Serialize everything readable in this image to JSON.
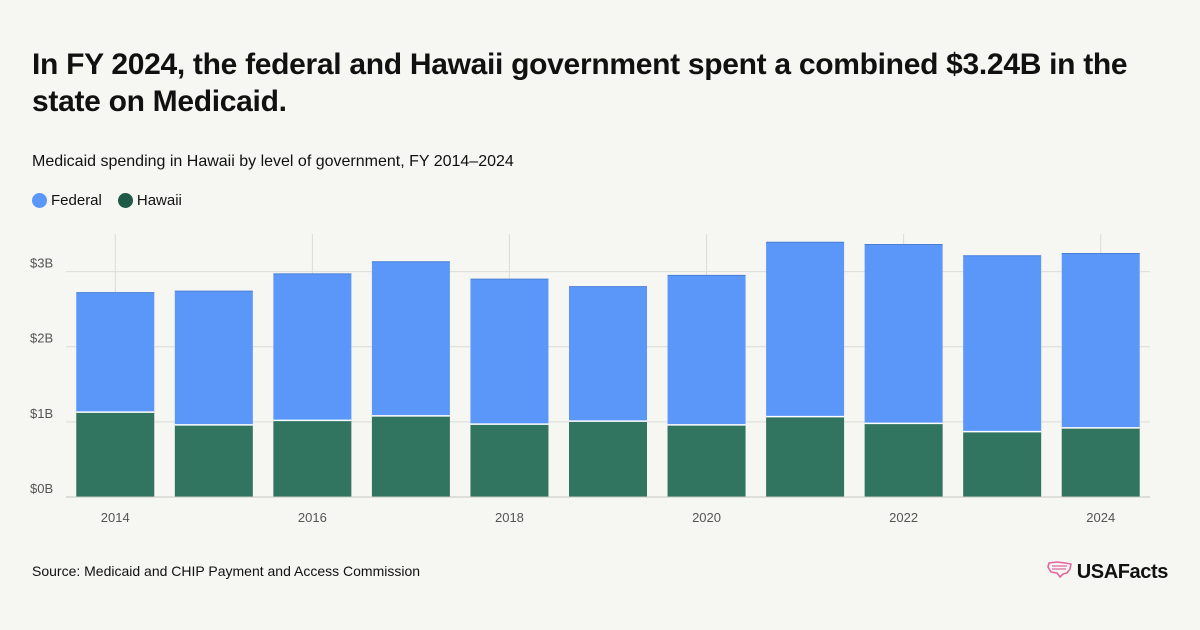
{
  "headline": "In FY 2024, the federal and Hawaii government spent a combined $3.24B in the state on Medicaid.",
  "source": "Source: Medicaid and CHIP Payment and Access Commission",
  "logo_text": "USAFacts",
  "colors": {
    "federal": "#5b97f9",
    "hawaii": "#317460",
    "grid": "#dcdcd6",
    "tick": "#555555"
  },
  "chart_data": {
    "type": "bar",
    "stacked": true,
    "title": "Medicaid spending in Hawaii by level of government, FY 2014–2024",
    "categories": [
      "2014",
      "2015",
      "2016",
      "2017",
      "2018",
      "2019",
      "2020",
      "2021",
      "2022",
      "2023",
      "2024"
    ],
    "x_tick_labels": [
      "2014",
      "",
      "2016",
      "",
      "2018",
      "",
      "2020",
      "",
      "2022",
      "",
      "2024"
    ],
    "series": [
      {
        "name": "Hawaii",
        "color": "#317460",
        "values": [
          1.13,
          0.96,
          1.02,
          1.08,
          0.97,
          1.01,
          0.96,
          1.07,
          0.98,
          0.87,
          0.92
        ]
      },
      {
        "name": "Federal",
        "color": "#5b97f9",
        "values": [
          1.59,
          1.78,
          1.95,
          2.05,
          1.93,
          1.79,
          1.99,
          2.32,
          2.38,
          2.34,
          2.32
        ]
      }
    ],
    "ylim": [
      0,
      3.5
    ],
    "y_ticks": [
      0,
      1,
      2,
      3
    ],
    "y_tick_labels": [
      "$0B",
      "$1B",
      "$2B",
      "$3B"
    ],
    "legend": [
      {
        "name": "Federal",
        "color": "#5b97f9"
      },
      {
        "name": "Hawaii",
        "color": "#1f5a48"
      }
    ],
    "legend_position": "top-left",
    "grid": true
  }
}
